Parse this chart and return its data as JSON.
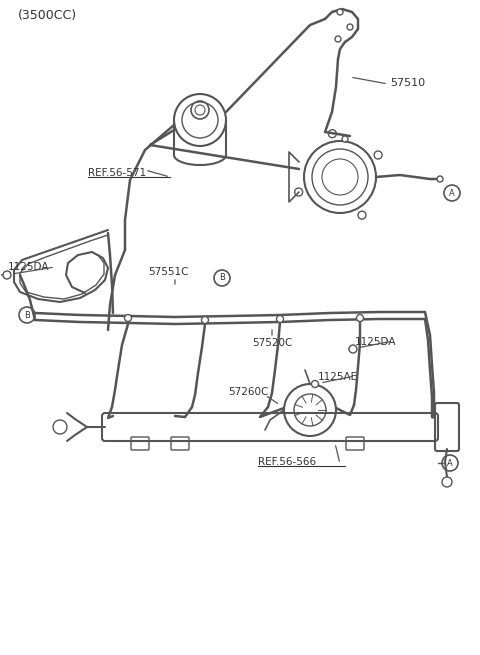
{
  "title": "(3500CC)",
  "bg_color": "#ffffff",
  "line_color": "#555555",
  "text_color": "#333333",
  "labels": {
    "title": "(3500CC)",
    "ref571": "REF.56-571",
    "ref566": "REF.56-566",
    "part57510": "57510",
    "part57551C": "57551C",
    "part57520C": "57520C",
    "part57260C": "57260C",
    "part1125DA_1": "1125DA",
    "part1125DA_2": "1125DA",
    "part1125AE": "1125AE",
    "circleA1": "A",
    "circleA2": "A",
    "circleB1": "B",
    "circleB2": "B"
  },
  "figsize": [
    4.8,
    6.55
  ],
  "dpi": 100
}
